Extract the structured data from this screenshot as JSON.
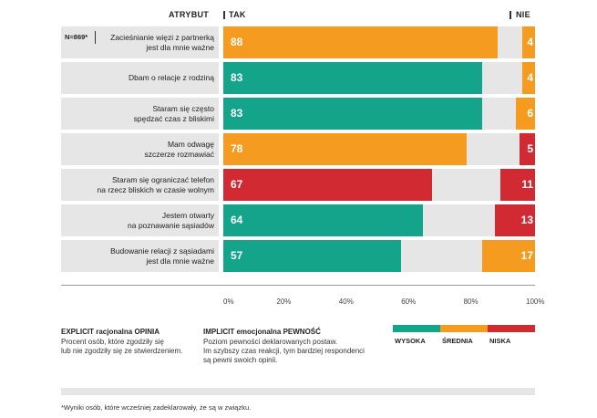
{
  "chart_data": {
    "type": "bar",
    "title": "",
    "header": {
      "attribute": "ATRYBUT",
      "yes": "TAK",
      "no": "NIE"
    },
    "sample_note": "N=869*",
    "categories": [
      "Zacieśnianie więzi z partnerką\njest dla mnie ważne",
      "Dbam o relacje z rodziną",
      "Staram się często\nspędzać czas z bliskimi",
      "Mam odwagę\nszczerze rozmawiać",
      "Staram się ograniczać telefon\nna rzecz bliskich w czasie wolnym",
      "Jestem otwarty\nna poznawanie sąsiadów",
      "Budowanie relacji z sąsiadami\njest dla mnie ważne"
    ],
    "series": [
      {
        "name": "TAK",
        "values": [
          88,
          83,
          83,
          78,
          67,
          64,
          57
        ],
        "levels": [
          "srednia",
          "wysoka",
          "wysoka",
          "srednia",
          "niska",
          "wysoka",
          "wysoka"
        ]
      },
      {
        "name": "NIE",
        "values": [
          4,
          4,
          6,
          5,
          11,
          13,
          17
        ],
        "levels": [
          "srednia",
          "srednia",
          "srednia",
          "niska",
          "niska",
          "niska",
          "srednia"
        ]
      }
    ],
    "xlim": [
      0,
      100
    ],
    "x_ticks": [
      "0%",
      "20%",
      "40%",
      "60%",
      "80%",
      "100%"
    ]
  },
  "colors": {
    "wysoka": "#14a38b",
    "srednia": "#f49b20",
    "niska": "#d12a32",
    "track": "#e6e6e6"
  },
  "legend": {
    "explicit_title": "EXPLICIT racjonalna OPINIA",
    "explicit_text": "Procent osób, które zgodziły się\nlub nie zgodziły się ze stwierdzeniem.",
    "implicit_title": "IMPLICIT emocjonalna PEWNOŚĆ",
    "implicit_text": "Poziom pewności deklarowanych postaw.\nIm szybszy czas reakcji, tym bardziej respondenci\nsą pewni swoich opinii.",
    "levels": [
      {
        "key": "wysoka",
        "label": "WYSOKA"
      },
      {
        "key": "srednia",
        "label": "ŚREDNIA"
      },
      {
        "key": "niska",
        "label": "NISKA"
      }
    ]
  },
  "footnote": "*Wyniki osób, które wcześniej zadeklarowały, że są w związku."
}
